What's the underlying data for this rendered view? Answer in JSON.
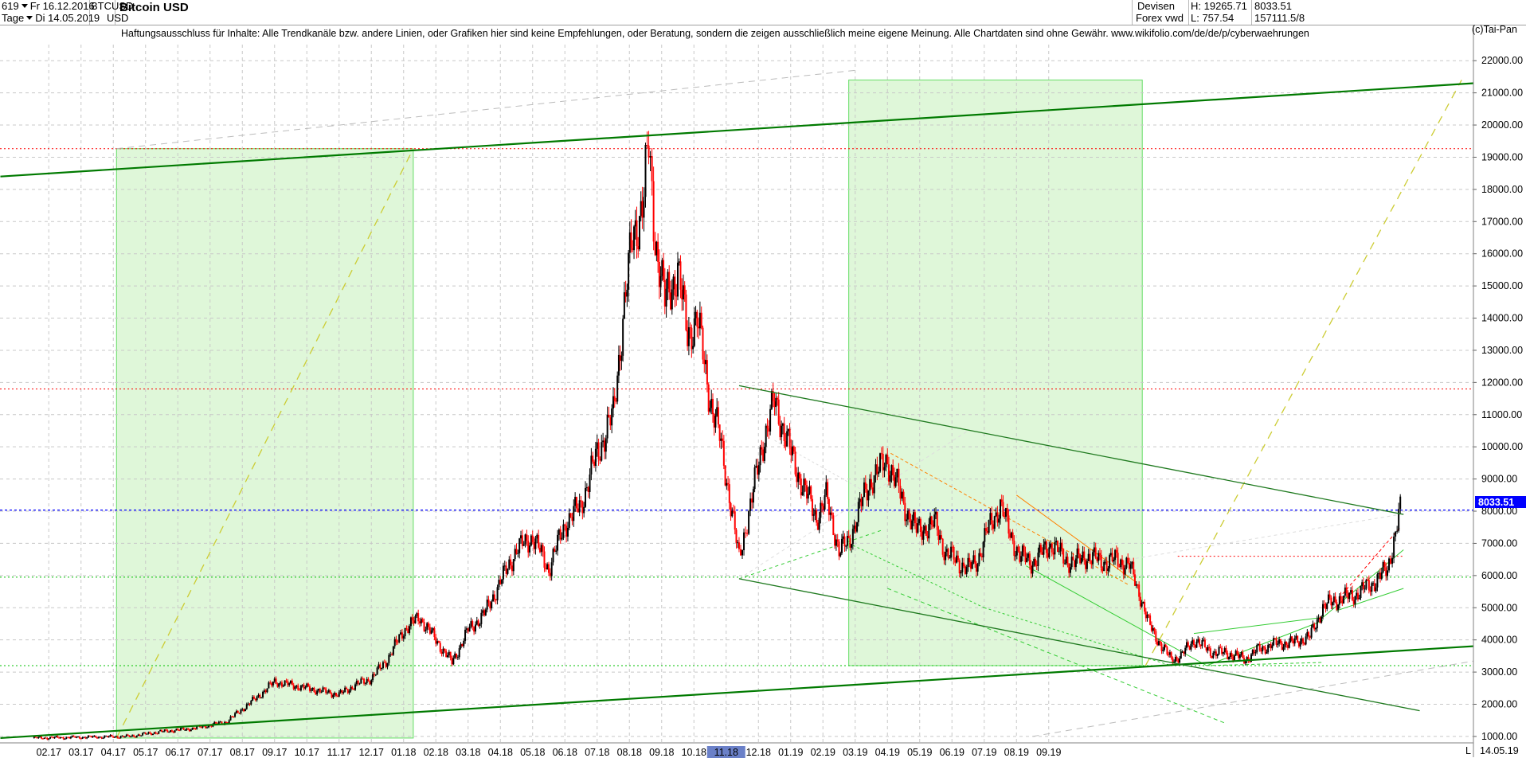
{
  "header": {
    "count": "619",
    "date_from": "Fr 16.12.2016",
    "period": "Tage",
    "date_to": "Di 14.05.2019",
    "symbol": "BTCUSD",
    "currency": "USD",
    "title": "Bitcoin USD",
    "market": "Devisen",
    "source": "Forex vwd",
    "high": "H: 19265.71",
    "low": "L: 757.54",
    "last": "8033.51",
    "volume": "157111.5/8",
    "copyright": "(c)Tai-Pan"
  },
  "disclaimer": "Haftungsausschluss für Inhalte: Alle Trendkanäle bzw. andere Linien, oder Grafiken hier sind keine Empfehlungen, oder Beratung, sondern die zeigen ausschließlich meine eigene Meinung. Alle Chartdaten sind ohne Gewähr.  www.wikifolio.com/de/de/p/cyberwaehrungen",
  "price_badge": "8033.51",
  "corner_label": "L",
  "end_date_label": "14.05.19",
  "colors": {
    "up_candle": "#000000",
    "down_candle": "#ff0000",
    "channel": "#008000",
    "light_green_box": "#dff7d9",
    "price_line": "#0000ff",
    "resistance": "#ff0000",
    "orange_trend": "#ff8000",
    "badge": "#0000ff"
  },
  "chart_data": {
    "type": "candlestick",
    "title": "Bitcoin USD",
    "ylim": [
      800,
      22500
    ],
    "y_ticks": [
      "1000.00",
      "2000.00",
      "3000.00",
      "4000.00",
      "5000.00",
      "6000.00",
      "7000.00",
      "8000.00",
      "9000.00",
      "10000.00",
      "11000.00",
      "12000.00",
      "13000.00",
      "14000.00",
      "15000.00",
      "16000.00",
      "17000.00",
      "18000.00",
      "19000.00",
      "20000.00",
      "21000.00",
      "22000.00"
    ],
    "x_ticks": [
      "02.17",
      "03.17",
      "04.17",
      "05.17",
      "06.17",
      "07.17",
      "08.17",
      "09.17",
      "10.17",
      "11.17",
      "12.17",
      "01.18",
      "02.18",
      "03.18",
      "04.18",
      "05.18",
      "06.18",
      "07.18",
      "08.18",
      "09.18",
      "10.18",
      "11.18",
      "12.18",
      "01.19",
      "02.19",
      "03.19",
      "04.19",
      "05.19",
      "06.19",
      "07.19",
      "08.19",
      "09.19"
    ],
    "grid": true,
    "last_price": 8033.51,
    "high": 19265.71,
    "low": 757.54,
    "price_path": [
      [
        0,
        950
      ],
      [
        3,
        1000
      ],
      [
        4,
        1150
      ],
      [
        5,
        1250
      ],
      [
        6,
        1450
      ],
      [
        7,
        2250
      ],
      [
        7.5,
        2700
      ],
      [
        8,
        2600
      ],
      [
        8.5,
        2500
      ],
      [
        9,
        2400
      ],
      [
        9.5,
        2300
      ],
      [
        10,
        2600
      ],
      [
        10.5,
        2800
      ],
      [
        11,
        3400
      ],
      [
        11.5,
        4300
      ],
      [
        12,
        4700
      ],
      [
        12.5,
        4000
      ],
      [
        13,
        3300
      ],
      [
        13.5,
        4300
      ],
      [
        14,
        4800
      ],
      [
        14.5,
        5800
      ],
      [
        15,
        6800
      ],
      [
        15.5,
        7200
      ],
      [
        16,
        6200
      ],
      [
        16.5,
        7600
      ],
      [
        17,
        8200
      ],
      [
        17.5,
        9800
      ],
      [
        18,
        11000
      ],
      [
        18.3,
        14000
      ],
      [
        18.6,
        16500
      ],
      [
        18.9,
        17500
      ],
      [
        19.1,
        19265
      ],
      [
        19.3,
        16500
      ],
      [
        19.6,
        14500
      ],
      [
        20,
        15500
      ],
      [
        20.3,
        13500
      ],
      [
        20.6,
        14000
      ],
      [
        21,
        11500
      ],
      [
        21.3,
        10300
      ],
      [
        21.6,
        8500
      ],
      [
        21.9,
        6500
      ],
      [
        22.1,
        7500
      ],
      [
        22.3,
        8400
      ],
      [
        22.6,
        10000
      ],
      [
        23,
        11400
      ],
      [
        23.3,
        10500
      ],
      [
        23.6,
        9500
      ],
      [
        24,
        8500
      ],
      [
        24.3,
        7800
      ],
      [
        24.6,
        8400
      ],
      [
        25,
        6800
      ],
      [
        25.3,
        7000
      ],
      [
        25.6,
        8000
      ],
      [
        26,
        9000
      ],
      [
        26.5,
        9600
      ],
      [
        26.8,
        8800
      ],
      [
        27,
        8200
      ],
      [
        27.4,
        7400
      ],
      [
        27.7,
        7500
      ],
      [
        28,
        7600
      ],
      [
        28.3,
        6700
      ],
      [
        28.6,
        6500
      ],
      [
        29,
        6200
      ],
      [
        29.3,
        6500
      ],
      [
        29.6,
        7400
      ],
      [
        30,
        8200
      ],
      [
        30.3,
        7300
      ],
      [
        30.6,
        6600
      ],
      [
        31,
        6400
      ],
      [
        31.3,
        6700
      ],
      [
        31.6,
        7000
      ],
      [
        32,
        6500
      ],
      [
        32.3,
        6400
      ],
      [
        32.6,
        6600
      ],
      [
        33,
        6500
      ],
      [
        33.3,
        6400
      ],
      [
        33.6,
        6500
      ],
      [
        34,
        6300
      ],
      [
        34.3,
        5500
      ],
      [
        34.6,
        4500
      ],
      [
        35,
        3800
      ],
      [
        35.3,
        3400
      ],
      [
        35.6,
        3500
      ],
      [
        36,
        4000
      ],
      [
        36.3,
        3800
      ],
      [
        36.6,
        3600
      ],
      [
        37,
        3600
      ],
      [
        37.3,
        3500
      ],
      [
        37.6,
        3400
      ],
      [
        38,
        3700
      ],
      [
        38.3,
        3800
      ],
      [
        38.6,
        3900
      ],
      [
        39,
        3900
      ],
      [
        39.3,
        4000
      ],
      [
        39.6,
        4100
      ],
      [
        40,
        5000
      ],
      [
        40.3,
        5200
      ],
      [
        40.6,
        5300
      ],
      [
        41,
        5400
      ],
      [
        41.3,
        5600
      ],
      [
        41.6,
        5800
      ],
      [
        42,
        6200
      ],
      [
        42.2,
        7100
      ],
      [
        42.4,
        8033
      ]
    ],
    "channels": [
      {
        "name": "",
        "points": [
          [
            -1,
            18400
          ],
          [
            51,
            21700
          ]
        ]
      },
      {
        "name": "",
        "points": [
          [
            -1,
            950
          ],
          [
            51,
            4200
          ]
        ]
      },
      {
        "name": "",
        "points": [
          [
            21.9,
            11900
          ],
          [
            42.5,
            7900
          ]
        ]
      },
      {
        "name": "",
        "points": [
          [
            21.9,
            5900
          ],
          [
            43,
            1800
          ]
        ]
      }
    ],
    "horizontal_lines": [
      {
        "y": 19265,
        "color": "#ff0000",
        "style": "dotted"
      },
      {
        "y": 11800,
        "color": "#ff0000",
        "style": "dotted"
      },
      {
        "y": 8033.51,
        "color": "#0000ff",
        "style": "dotted"
      },
      {
        "y": 6600,
        "color": "#ff0000",
        "style": "dotted"
      },
      {
        "y": 5950,
        "color": "#00c000",
        "style": "dotted"
      },
      {
        "y": 3200,
        "color": "#00c000",
        "style": "dotted"
      }
    ]
  }
}
